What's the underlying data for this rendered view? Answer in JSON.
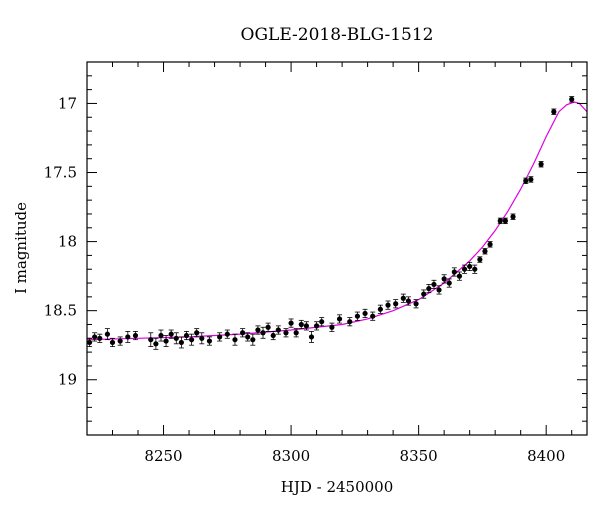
{
  "chart_data": {
    "type": "scatter",
    "title": "OGLE-2018-BLG-1512",
    "xlabel": "HJD - 2450000",
    "ylabel": "I magnitude",
    "xlim": [
      8220,
      8416
    ],
    "ylim": [
      19.4,
      16.7
    ],
    "y_inverted": true,
    "x_ticks": [
      8250,
      8300,
      8350,
      8400
    ],
    "x_tick_labels": [
      "8250",
      "8300",
      "8350",
      "8400"
    ],
    "y_ticks": [
      17,
      17.5,
      18,
      18.5,
      19
    ],
    "y_tick_labels": [
      "17",
      "17.5",
      "18",
      "18.5",
      "19"
    ],
    "grid": false,
    "colors": {
      "points": "#000000",
      "model": "#e000e0",
      "axes": "#000000"
    },
    "series": [
      {
        "kind": "points_with_errorbars",
        "x": [
          8221,
          8223,
          8225,
          8228,
          8230,
          8233,
          8236,
          8239,
          8245,
          8247,
          8249,
          8251,
          8253,
          8255,
          8257,
          8259,
          8261,
          8263,
          8265,
          8268,
          8272,
          8275,
          8278,
          8281,
          8283,
          8285,
          8287,
          8289,
          8291,
          8293,
          8295,
          8298,
          8300,
          8302,
          8304,
          8306,
          8308,
          8310,
          8312,
          8316,
          8319,
          8323,
          8326,
          8329,
          8332,
          8335,
          8338,
          8341,
          8344,
          8346,
          8349,
          8352,
          8354,
          8356,
          8358,
          8360,
          8362,
          8364,
          8366,
          8368,
          8370,
          8372,
          8374,
          8376,
          8378,
          8382,
          8384,
          8387,
          8392,
          8394,
          8398,
          8403,
          8410
        ],
        "y": [
          18.73,
          18.69,
          18.7,
          18.67,
          18.73,
          18.72,
          18.69,
          18.68,
          18.71,
          18.74,
          18.68,
          18.72,
          18.67,
          18.7,
          18.73,
          18.68,
          18.71,
          18.66,
          18.7,
          18.72,
          18.69,
          18.67,
          18.71,
          18.66,
          18.69,
          18.71,
          18.64,
          18.66,
          18.62,
          18.68,
          18.64,
          18.66,
          18.59,
          18.66,
          18.6,
          18.61,
          18.69,
          18.61,
          18.58,
          18.62,
          18.56,
          18.58,
          18.54,
          18.52,
          18.54,
          18.49,
          18.46,
          18.45,
          18.41,
          18.43,
          18.45,
          18.38,
          18.34,
          18.31,
          18.35,
          18.27,
          18.3,
          18.22,
          18.25,
          18.2,
          18.18,
          18.2,
          18.13,
          18.07,
          18.02,
          17.85,
          17.85,
          17.82,
          17.56,
          17.55,
          17.44,
          17.06,
          16.97
        ],
        "err": [
          0.03,
          0.03,
          0.03,
          0.04,
          0.03,
          0.03,
          0.04,
          0.03,
          0.05,
          0.04,
          0.04,
          0.04,
          0.03,
          0.04,
          0.04,
          0.03,
          0.04,
          0.03,
          0.04,
          0.03,
          0.03,
          0.03,
          0.04,
          0.03,
          0.03,
          0.04,
          0.03,
          0.04,
          0.03,
          0.03,
          0.03,
          0.03,
          0.03,
          0.03,
          0.03,
          0.03,
          0.04,
          0.03,
          0.03,
          0.03,
          0.03,
          0.03,
          0.03,
          0.03,
          0.03,
          0.03,
          0.03,
          0.03,
          0.03,
          0.03,
          0.03,
          0.03,
          0.03,
          0.03,
          0.03,
          0.03,
          0.03,
          0.03,
          0.03,
          0.03,
          0.03,
          0.03,
          0.02,
          0.02,
          0.02,
          0.02,
          0.02,
          0.02,
          0.02,
          0.02,
          0.02,
          0.02,
          0.02
        ]
      },
      {
        "kind": "model_curve",
        "x": [
          8220,
          8240,
          8260,
          8280,
          8300,
          8310,
          8320,
          8330,
          8340,
          8350,
          8355,
          8360,
          8365,
          8370,
          8375,
          8380,
          8385,
          8390,
          8395,
          8400,
          8405,
          8408,
          8411,
          8413,
          8416
        ],
        "y": [
          18.71,
          18.7,
          18.69,
          18.67,
          18.64,
          18.62,
          18.6,
          18.56,
          18.5,
          18.42,
          18.36,
          18.3,
          18.22,
          18.14,
          18.04,
          17.92,
          17.78,
          17.62,
          17.44,
          17.24,
          17.06,
          17.01,
          16.99,
          17.0,
          17.06
        ]
      }
    ]
  }
}
